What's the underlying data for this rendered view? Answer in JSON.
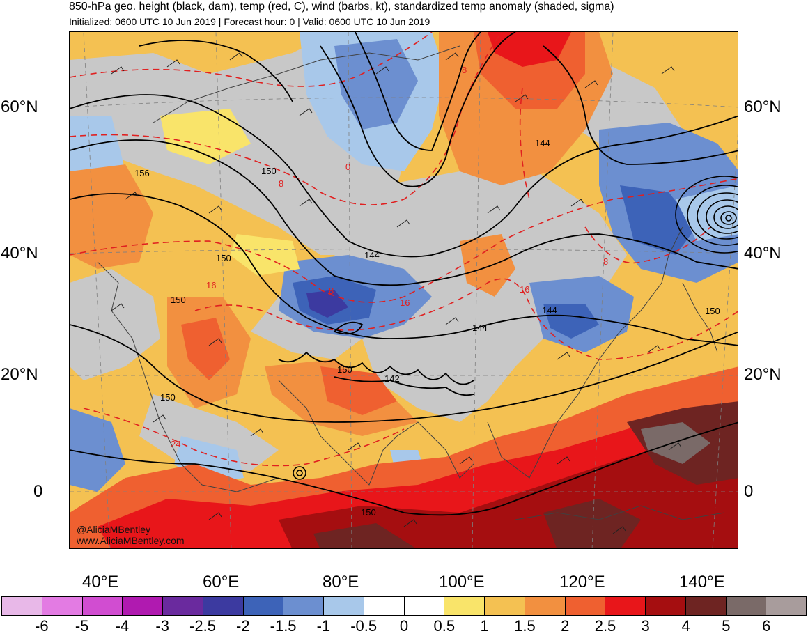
{
  "title": "850-hPa geo. height (black, dam), temp (red, C), wind (barbs, kt), standardized temp anomaly (shaded, sigma)",
  "subtitle": "Initialized: 0600 UTC 10 Jun 2019 | Forecast hour: 0 | Valid: 0600 UTC 10 Jun 2019",
  "axes": {
    "lat_left": [
      "60°N",
      "40°N",
      "20°N",
      "0"
    ],
    "lat_right": [
      "60°N",
      "40°N",
      "20°N",
      "0"
    ],
    "lon": [
      "40°E",
      "60°E",
      "80°E",
      "100°E",
      "120°E",
      "140°E"
    ]
  },
  "credits": {
    "handle": "@AliciaMBentley",
    "website": "www.AliciaMBentley.com"
  },
  "height_contour_labels": [
    "156",
    "150",
    "150",
    "150",
    "150",
    "144",
    "144",
    "144",
    "144",
    "150",
    "150",
    "142",
    "150"
  ],
  "temp_contour_labels": [
    "8",
    "8",
    "8",
    "8",
    "16",
    "16",
    "16",
    "24",
    "0"
  ],
  "colorbar": {
    "colors": [
      "#e8b8e8",
      "#e37be3",
      "#d14dd1",
      "#b01ab0",
      "#6a2a9e",
      "#3c3aa0",
      "#3d63b8",
      "#6c8fd0",
      "#a8c8ea",
      "#ffffff",
      "#ffffff",
      "#f9e46a",
      "#f4c152",
      "#f29040",
      "#ef6030",
      "#e8161a",
      "#a50e10",
      "#6e2422",
      "#7a6a68",
      "#a89c9c"
    ],
    "labels": [
      "-6",
      "-5",
      "-4",
      "-3",
      "-2.5",
      "-2",
      "-1.5",
      "-1",
      "-0.5",
      "0",
      "0.5",
      "1",
      "1.5",
      "2",
      "2.5",
      "3",
      "4",
      "5",
      "6"
    ]
  },
  "map_colors": {
    "cold": "#6c8fd0",
    "cold_deep": "#3d63b8",
    "cold_extreme": "#3c3aa0",
    "neutral": "#c8c8c8",
    "light_blue": "#a8c8ea",
    "warm1": "#f9e46a",
    "warm2": "#f4c152",
    "warm3": "#f29040",
    "warm4": "#ef6030",
    "hot": "#e8161a",
    "hot_deep": "#a50e10",
    "extreme": "#6e2422",
    "grey_extreme": "#7a6a68",
    "temp_contour": "#e02020",
    "height_contour": "#000000"
  }
}
